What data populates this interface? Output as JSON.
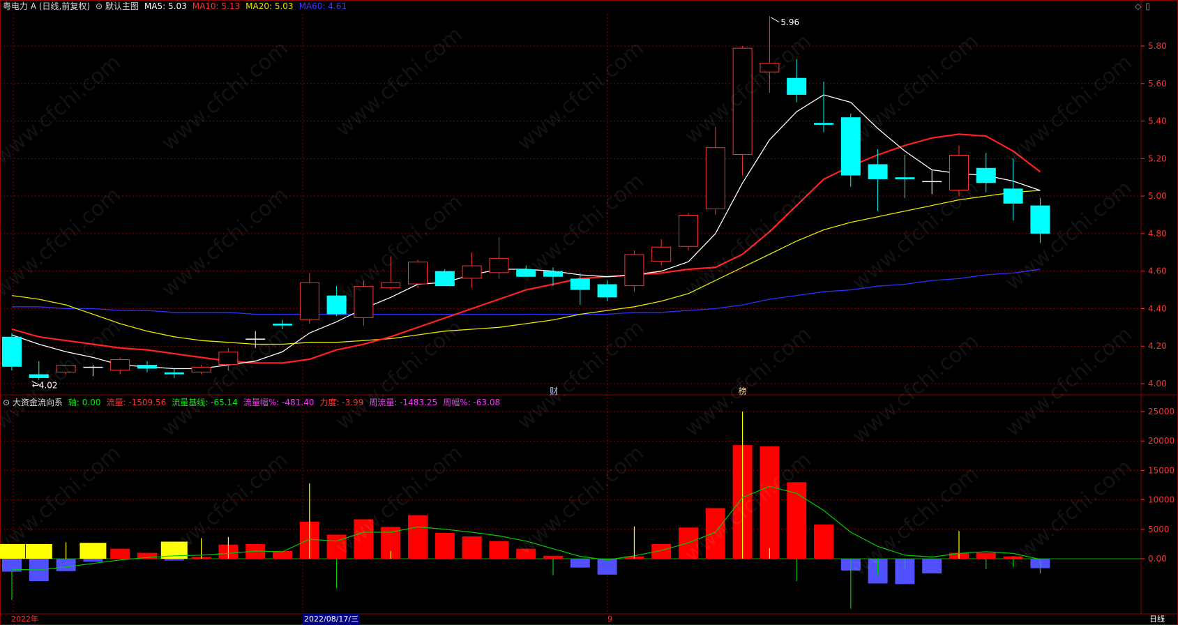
{
  "header_main": {
    "stock": "粤电力 A",
    "mode": "(日线,前复权)",
    "main_title": "默认主图",
    "ma5": "MA5: 5.03",
    "ma10": "MA10: 5.13",
    "ma20": "MA20: 5.03",
    "ma60": "MA60: 4.61"
  },
  "header_sub": {
    "name": "大资金流向系",
    "axis": "轴: 0.00",
    "flow": "流量: -1509.56",
    "base": "流量基线: -65.14",
    "flowpct": "流量幅%: -481.40",
    "force": "力度: -3.99",
    "week": "周流量: -1483.25",
    "weekpct": "周幅%: -63.08"
  },
  "bottom": {
    "year": "2022年",
    "date": "2022/08/17/三",
    "mid": "9",
    "period": "日线"
  },
  "annotations": {
    "high_label": "5.96",
    "low_label": "4.02",
    "fin": "财",
    "bang": "榜"
  },
  "watermark": "www.cfchi.com",
  "colors": {
    "up": "#ff3232",
    "down": "#00ffff",
    "ma5": "#ffffff",
    "ma10": "#ff2020",
    "ma20": "#e6e600",
    "ma60": "#3030ff",
    "grid": "#8b0000",
    "axis_text": "#ff3232",
    "flow_pos": "#ff0000",
    "flow_neg": "#5050ff",
    "flow_yellow": "#ffff00",
    "flow_line": "#00cc00"
  },
  "chart_data": [
    {
      "type": "candlestick",
      "ylim": [
        3.95,
        6.0
      ],
      "yticks": [
        "4.00",
        "4.20",
        "4.40",
        "4.60",
        "4.80",
        "5.00",
        "5.20",
        "5.40",
        "5.60",
        "5.80"
      ],
      "candles": [
        {
          "o": 4.25,
          "h": 4.27,
          "l": 4.07,
          "c": 4.09
        },
        {
          "o": 4.05,
          "h": 4.12,
          "l": 4.02,
          "c": 4.03
        },
        {
          "o": 4.06,
          "h": 4.1,
          "l": 4.05,
          "c": 4.1
        },
        {
          "o": 4.09,
          "h": 4.1,
          "l": 4.04,
          "c": 4.09
        },
        {
          "o": 4.07,
          "h": 4.14,
          "l": 4.05,
          "c": 4.13
        },
        {
          "o": 4.1,
          "h": 4.12,
          "l": 4.06,
          "c": 4.08
        },
        {
          "o": 4.06,
          "h": 4.08,
          "l": 4.03,
          "c": 4.05
        },
        {
          "o": 4.06,
          "h": 4.1,
          "l": 4.05,
          "c": 4.09
        },
        {
          "o": 4.1,
          "h": 4.19,
          "l": 4.07,
          "c": 4.17
        },
        {
          "o": 4.24,
          "h": 4.28,
          "l": 4.19,
          "c": 4.24
        },
        {
          "o": 4.32,
          "h": 4.34,
          "l": 4.29,
          "c": 4.31
        },
        {
          "o": 4.34,
          "h": 4.59,
          "l": 4.32,
          "c": 4.54
        },
        {
          "o": 4.47,
          "h": 4.52,
          "l": 4.36,
          "c": 4.37
        },
        {
          "o": 4.35,
          "h": 4.55,
          "l": 4.31,
          "c": 4.52
        },
        {
          "o": 4.51,
          "h": 4.68,
          "l": 4.5,
          "c": 4.54
        },
        {
          "o": 4.53,
          "h": 4.66,
          "l": 4.51,
          "c": 4.65
        },
        {
          "o": 4.6,
          "h": 4.61,
          "l": 4.52,
          "c": 4.52
        },
        {
          "o": 4.56,
          "h": 4.7,
          "l": 4.51,
          "c": 4.63
        },
        {
          "o": 4.59,
          "h": 4.78,
          "l": 4.56,
          "c": 4.67
        },
        {
          "o": 4.61,
          "h": 4.63,
          "l": 4.57,
          "c": 4.57
        },
        {
          "o": 4.6,
          "h": 4.62,
          "l": 4.52,
          "c": 4.57
        },
        {
          "o": 4.56,
          "h": 4.59,
          "l": 4.42,
          "c": 4.5
        },
        {
          "o": 4.53,
          "h": 4.55,
          "l": 4.44,
          "c": 4.46
        },
        {
          "o": 4.52,
          "h": 4.71,
          "l": 4.49,
          "c": 4.69
        },
        {
          "o": 4.65,
          "h": 4.77,
          "l": 4.63,
          "c": 4.73
        },
        {
          "o": 4.73,
          "h": 4.91,
          "l": 4.71,
          "c": 4.9
        },
        {
          "o": 4.93,
          "h": 5.37,
          "l": 4.9,
          "c": 5.26
        },
        {
          "o": 5.22,
          "h": 5.8,
          "l": 5.11,
          "c": 5.79
        },
        {
          "o": 5.66,
          "h": 5.96,
          "l": 5.55,
          "c": 5.71
        },
        {
          "o": 5.63,
          "h": 5.73,
          "l": 5.5,
          "c": 5.54
        },
        {
          "o": 5.39,
          "h": 5.61,
          "l": 5.34,
          "c": 5.38
        },
        {
          "o": 5.42,
          "h": 5.44,
          "l": 5.05,
          "c": 5.11
        },
        {
          "o": 5.17,
          "h": 5.25,
          "l": 4.92,
          "c": 5.09
        },
        {
          "o": 5.1,
          "h": 5.22,
          "l": 4.99,
          "c": 5.09
        },
        {
          "o": 5.08,
          "h": 5.14,
          "l": 5.01,
          "c": 5.08
        },
        {
          "o": 5.03,
          "h": 5.27,
          "l": 5.0,
          "c": 5.22
        },
        {
          "o": 5.15,
          "h": 5.23,
          "l": 5.02,
          "c": 5.07
        },
        {
          "o": 5.04,
          "h": 5.2,
          "l": 4.87,
          "c": 4.96
        },
        {
          "o": 4.95,
          "h": 4.99,
          "l": 4.75,
          "c": 4.8
        }
      ],
      "ma5": [
        4.26,
        4.21,
        4.17,
        4.14,
        4.1,
        4.09,
        4.08,
        4.08,
        4.1,
        4.12,
        4.17,
        4.27,
        4.33,
        4.4,
        4.46,
        4.53,
        4.54,
        4.58,
        4.61,
        4.61,
        4.6,
        4.58,
        4.57,
        4.58,
        4.6,
        4.65,
        4.8,
        5.07,
        5.3,
        5.45,
        5.54,
        5.5,
        5.36,
        5.24,
        5.14,
        5.12,
        5.11,
        5.08,
        5.03
      ],
      "ma10": [
        4.29,
        4.25,
        4.23,
        4.21,
        4.19,
        4.18,
        4.16,
        4.14,
        4.12,
        4.11,
        4.11,
        4.13,
        4.18,
        4.21,
        4.25,
        4.3,
        4.35,
        4.4,
        4.45,
        4.5,
        4.53,
        4.56,
        4.57,
        4.58,
        4.59,
        4.61,
        4.62,
        4.69,
        4.81,
        4.95,
        5.09,
        5.16,
        5.22,
        5.27,
        5.31,
        5.33,
        5.32,
        5.24,
        5.13
      ],
      "ma20": [
        4.47,
        4.45,
        4.42,
        4.37,
        4.32,
        4.28,
        4.25,
        4.23,
        4.22,
        4.21,
        4.21,
        4.22,
        4.22,
        4.23,
        4.24,
        4.26,
        4.28,
        4.29,
        4.3,
        4.32,
        4.34,
        4.37,
        4.39,
        4.41,
        4.44,
        4.48,
        4.55,
        4.62,
        4.69,
        4.76,
        4.82,
        4.86,
        4.89,
        4.92,
        4.95,
        4.98,
        5.0,
        5.02,
        5.03
      ],
      "ma60": [
        4.41,
        4.41,
        4.4,
        4.4,
        4.39,
        4.39,
        4.38,
        4.38,
        4.38,
        4.37,
        4.37,
        4.37,
        4.37,
        4.37,
        4.37,
        4.37,
        4.37,
        4.37,
        4.37,
        4.37,
        4.37,
        4.37,
        4.37,
        4.38,
        4.38,
        4.39,
        4.4,
        4.42,
        4.45,
        4.47,
        4.49,
        4.5,
        4.52,
        4.53,
        4.55,
        4.56,
        4.58,
        4.59,
        4.61
      ]
    },
    {
      "type": "bar",
      "ylim": [
        -9000,
        26000
      ],
      "yticks": [
        "0.00",
        "5000",
        "10000",
        "15000",
        "20000",
        "25000"
      ],
      "flow": [
        -2200,
        -3800,
        -2100,
        -500,
        1700,
        1000,
        -300,
        300,
        2400,
        2500,
        1300,
        6300,
        4100,
        6700,
        5400,
        7400,
        4400,
        3800,
        3000,
        1700,
        500,
        -1500,
        -2700,
        400,
        2500,
        5300,
        8600,
        19300,
        19100,
        13000,
        5800,
        -2000,
        -4200,
        -4300,
        -2500,
        1000,
        1000,
        400,
        -1600
      ],
      "yellow": [
        2500,
        2500,
        0,
        2700,
        0,
        0,
        2900,
        0,
        0,
        0,
        0,
        0,
        0,
        0,
        0,
        0,
        0,
        0,
        0,
        0,
        0,
        0,
        0,
        0,
        0,
        0,
        0,
        0,
        0,
        0,
        0,
        0,
        0,
        0,
        0,
        0,
        0,
        0,
        0
      ],
      "spikes": [
        [
          -2000,
          -7000
        ],
        [
          0,
          0
        ],
        [
          0,
          2800
        ],
        [
          0,
          0
        ],
        [
          0,
          0
        ],
        [
          0,
          0
        ],
        [
          0,
          0
        ],
        [
          0,
          3500
        ],
        [
          0,
          3700
        ],
        [
          0,
          0
        ],
        [
          0,
          0
        ],
        [
          0,
          12800
        ],
        [
          0,
          -5000
        ],
        [
          0,
          0
        ],
        [
          0,
          1300
        ],
        [
          0,
          0
        ],
        [
          0,
          0
        ],
        [
          0,
          0
        ],
        [
          0,
          0
        ],
        [
          0,
          0
        ],
        [
          0,
          -2800
        ],
        [
          0,
          0
        ],
        [
          0,
          0
        ],
        [
          0,
          5500
        ],
        [
          0,
          0
        ],
        [
          0,
          0
        ],
        [
          0,
          0
        ],
        [
          0,
          25000
        ],
        [
          0,
          1800
        ],
        [
          0,
          -3800
        ],
        [
          0,
          0
        ],
        [
          0,
          -8500
        ],
        [
          0,
          -2800
        ],
        [
          0,
          -1800
        ],
        [
          0,
          0
        ],
        [
          0,
          4700
        ],
        [
          0,
          -1800
        ],
        [
          0,
          -1400
        ],
        [
          0,
          -2500
        ]
      ],
      "base": [
        -1800,
        -1900,
        -1400,
        -800,
        -200,
        200,
        500,
        600,
        900,
        1300,
        1200,
        3300,
        3000,
        4500,
        4500,
        5400,
        5000,
        4500,
        3900,
        3000,
        1700,
        400,
        -200,
        500,
        1400,
        2700,
        4500,
        10400,
        12300,
        11100,
        8200,
        4500,
        2100,
        600,
        300,
        900,
        1200,
        900,
        -100
      ]
    }
  ]
}
